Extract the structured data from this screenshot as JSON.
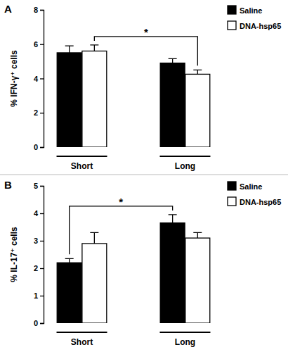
{
  "chart_data": [
    {
      "type": "bar",
      "title": "A",
      "y_label": "% IFN-γ⁺ cells",
      "categories": [
        "Short",
        "Long"
      ],
      "series": [
        {
          "name": "Saline",
          "color": "#000000",
          "values": [
            5.5,
            4.9
          ],
          "errors": [
            0.4,
            0.25
          ]
        },
        {
          "name": "DNA-hsp65",
          "color": "#ffffff",
          "values": [
            5.6,
            4.25
          ],
          "errors": [
            0.35,
            0.25
          ]
        }
      ],
      "ylim": [
        0,
        8
      ],
      "yticks": [
        0,
        2,
        4,
        6,
        8
      ],
      "legend": "right",
      "annotations": [
        {
          "text": "*",
          "series": "DNA-hsp65",
          "categories": [
            "Short",
            "Long"
          ]
        }
      ]
    },
    {
      "type": "bar",
      "title": "B",
      "y_label": "% IL-17⁺ cells",
      "categories": [
        "Short",
        "Long"
      ],
      "series": [
        {
          "name": "Saline",
          "color": "#000000",
          "values": [
            2.2,
            3.65
          ],
          "errors": [
            0.15,
            0.3
          ]
        },
        {
          "name": "DNA-hsp65",
          "color": "#ffffff",
          "values": [
            2.9,
            3.1
          ],
          "errors": [
            0.4,
            0.2
          ]
        }
      ],
      "ylim": [
        0,
        5
      ],
      "yticks": [
        0,
        1,
        2,
        3,
        4,
        5
      ],
      "legend": "right",
      "annotations": [
        {
          "text": "*",
          "series": "Saline",
          "categories": [
            "Short",
            "Long"
          ]
        }
      ]
    }
  ]
}
